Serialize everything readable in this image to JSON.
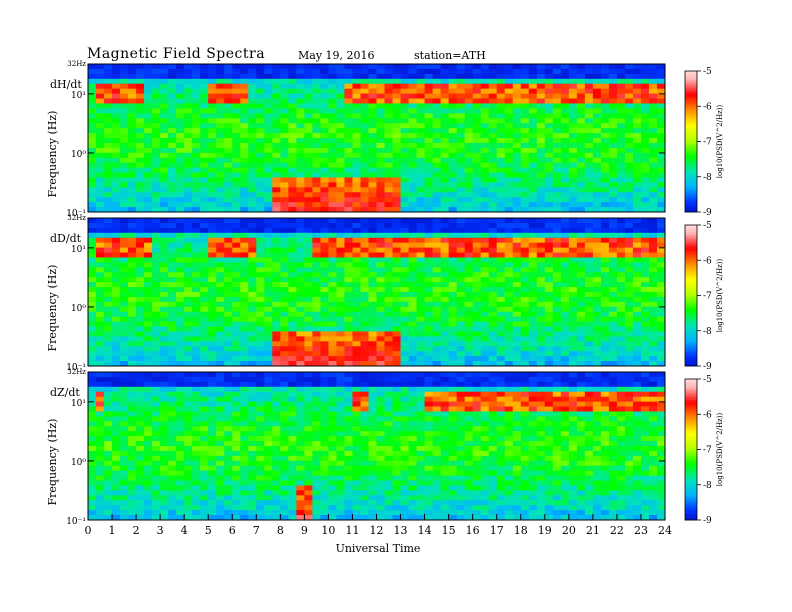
{
  "header": {
    "title": "Magnetic Field Spectra",
    "date": "May 19, 2016",
    "station": "station=ATH"
  },
  "chart_data": {
    "type": "heatmap",
    "xlabel": "Universal Time",
    "x_ticks": [
      "0",
      "1",
      "2",
      "3",
      "4",
      "5",
      "6",
      "7",
      "8",
      "9",
      "10",
      "11",
      "12",
      "13",
      "14",
      "15",
      "16",
      "17",
      "18",
      "19",
      "20",
      "21",
      "22",
      "23",
      "24"
    ],
    "xlim": [
      0,
      24
    ],
    "y_scale": "log",
    "ylim_hz": [
      0.1,
      32
    ],
    "colorbar": {
      "label": "log10(PSD(V^2/Hz))",
      "ticks": [
        "-5",
        "-6",
        "-7",
        "-8",
        "-9"
      ],
      "range": [
        -9,
        -5
      ],
      "colors": [
        "#000000",
        "#0000b0",
        "#0033ff",
        "#00b4ff",
        "#00e6b4",
        "#00ff00",
        "#b4ff00",
        "#ffff00",
        "#ff8c00",
        "#ff0000",
        "#ffb4b4",
        "#ffffff"
      ]
    },
    "panels": [
      {
        "name": "dH/dt",
        "ylabel": "Frequency (Hz)",
        "y_ticks": [
          "32Hz",
          "10¹",
          "10⁰",
          "10⁻¹"
        ],
        "intense_intervals_ut": [
          [
            7.8,
            10.0
          ],
          [
            10.0,
            12.9
          ]
        ],
        "band_activity_ut": [
          [
            0.2,
            2.2
          ],
          [
            5.0,
            6.5
          ],
          [
            10.8,
            24.0
          ]
        ]
      },
      {
        "name": "dD/dt",
        "ylabel": "Frequency (Hz)",
        "y_ticks": [
          "32Hz",
          "10¹",
          "10⁰",
          "10⁻¹"
        ],
        "intense_intervals_ut": [
          [
            7.8,
            10.0
          ],
          [
            10.0,
            13.0
          ]
        ],
        "band_activity_ut": [
          [
            0.2,
            2.6
          ],
          [
            5.0,
            7.0
          ],
          [
            9.5,
            24.0
          ]
        ]
      },
      {
        "name": "dZ/dt",
        "ylabel": "Frequency (Hz)",
        "y_ticks": [
          "32Hz",
          "10¹",
          "10⁰",
          "10⁻¹"
        ],
        "intense_intervals_ut": [
          [
            8.6,
            9.2
          ]
        ],
        "band_activity_ut": [
          [
            0.3,
            0.8
          ],
          [
            11.0,
            11.6
          ],
          [
            14.0,
            24.0
          ]
        ]
      }
    ]
  }
}
